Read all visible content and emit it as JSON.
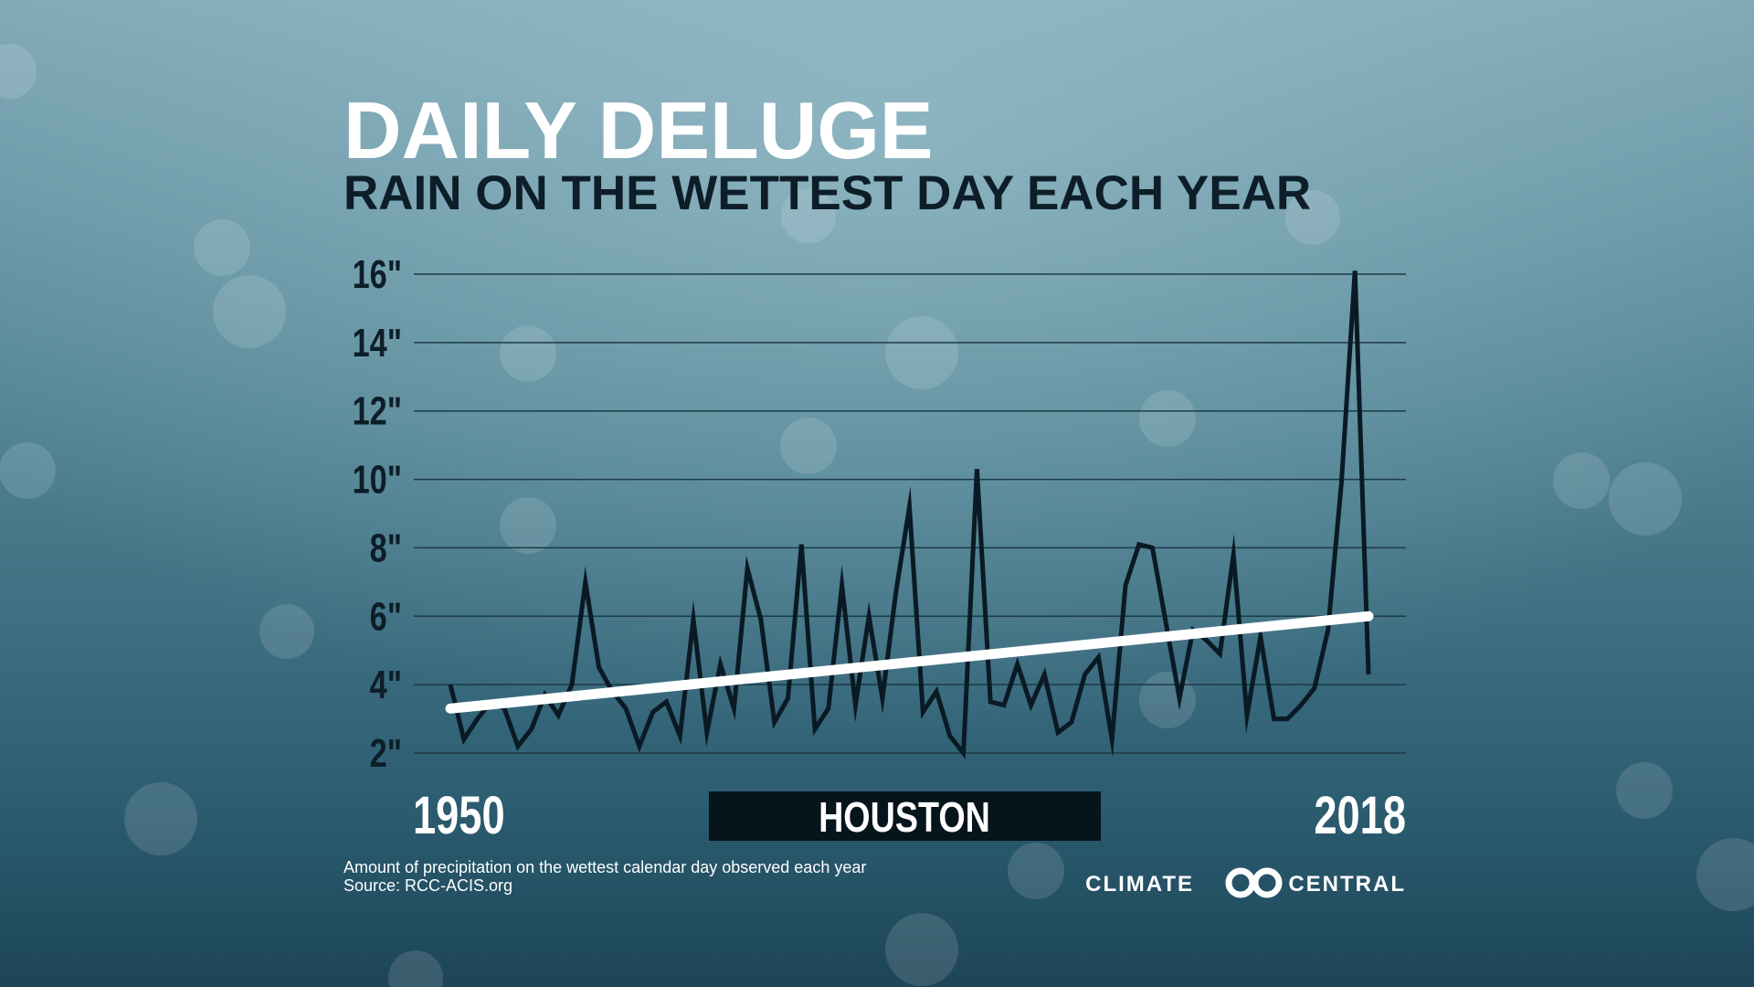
{
  "chart_data": {
    "type": "line",
    "title": "DAILY DELUGE",
    "subtitle": "RAIN ON THE WETTEST DAY EACH YEAR",
    "location": "HOUSTON",
    "note": "Amount of precipitation on the wettest calendar day observed each year",
    "source": "Source: RCC-ACIS.org",
    "brand": [
      "CLIMATE",
      "CENTRAL"
    ],
    "x": [
      1950,
      1951,
      1952,
      1953,
      1954,
      1955,
      1956,
      1957,
      1958,
      1959,
      1960,
      1961,
      1962,
      1963,
      1964,
      1965,
      1966,
      1967,
      1968,
      1969,
      1970,
      1971,
      1972,
      1973,
      1974,
      1975,
      1976,
      1977,
      1978,
      1979,
      1980,
      1981,
      1982,
      1983,
      1984,
      1985,
      1986,
      1987,
      1988,
      1989,
      1990,
      1991,
      1992,
      1993,
      1994,
      1995,
      1996,
      1997,
      1998,
      1999,
      2000,
      2001,
      2002,
      2003,
      2004,
      2005,
      2006,
      2007,
      2008,
      2009,
      2010,
      2011,
      2012,
      2013,
      2014,
      2015,
      2016,
      2017,
      2018
    ],
    "series": [
      {
        "name": "Houston",
        "color": "#0a1a24",
        "values": [
          4.0,
          2.4,
          3.0,
          3.5,
          3.3,
          2.2,
          2.7,
          3.7,
          3.1,
          4.0,
          7.0,
          4.5,
          3.8,
          3.3,
          2.2,
          3.2,
          3.5,
          2.5,
          5.9,
          2.6,
          4.6,
          3.3,
          7.4,
          5.9,
          2.9,
          3.6,
          8.1,
          2.7,
          3.3,
          6.9,
          3.4,
          6.0,
          3.6,
          6.7,
          9.2,
          3.2,
          3.8,
          2.5,
          2.0,
          10.3,
          3.5,
          3.4,
          4.6,
          3.4,
          4.3,
          2.6,
          2.9,
          4.3,
          4.8,
          2.4,
          6.9,
          8.1,
          8.0,
          5.8,
          3.6,
          5.6,
          5.3,
          4.9,
          7.8,
          3.1,
          5.4,
          3.0,
          3.0,
          3.4,
          3.9,
          5.6,
          9.9,
          16.1,
          4.3
        ]
      }
    ],
    "trend": {
      "color": "#ffffff",
      "x": [
        1950,
        2018
      ],
      "values": [
        3.3,
        6.0
      ]
    },
    "xlim": [
      1950,
      2018
    ],
    "xticks": [
      1950,
      2018
    ],
    "ylim": [
      2,
      16
    ],
    "yticks": [
      {
        "value": 2,
        "label": "2\""
      },
      {
        "value": 4,
        "label": "4\""
      },
      {
        "value": 6,
        "label": "6\""
      },
      {
        "value": 8,
        "label": "8\""
      },
      {
        "value": 10,
        "label": "10\""
      },
      {
        "value": 12,
        "label": "12\""
      },
      {
        "value": 14,
        "label": "14\""
      },
      {
        "value": 16,
        "label": "16\""
      }
    ],
    "grid": true
  }
}
